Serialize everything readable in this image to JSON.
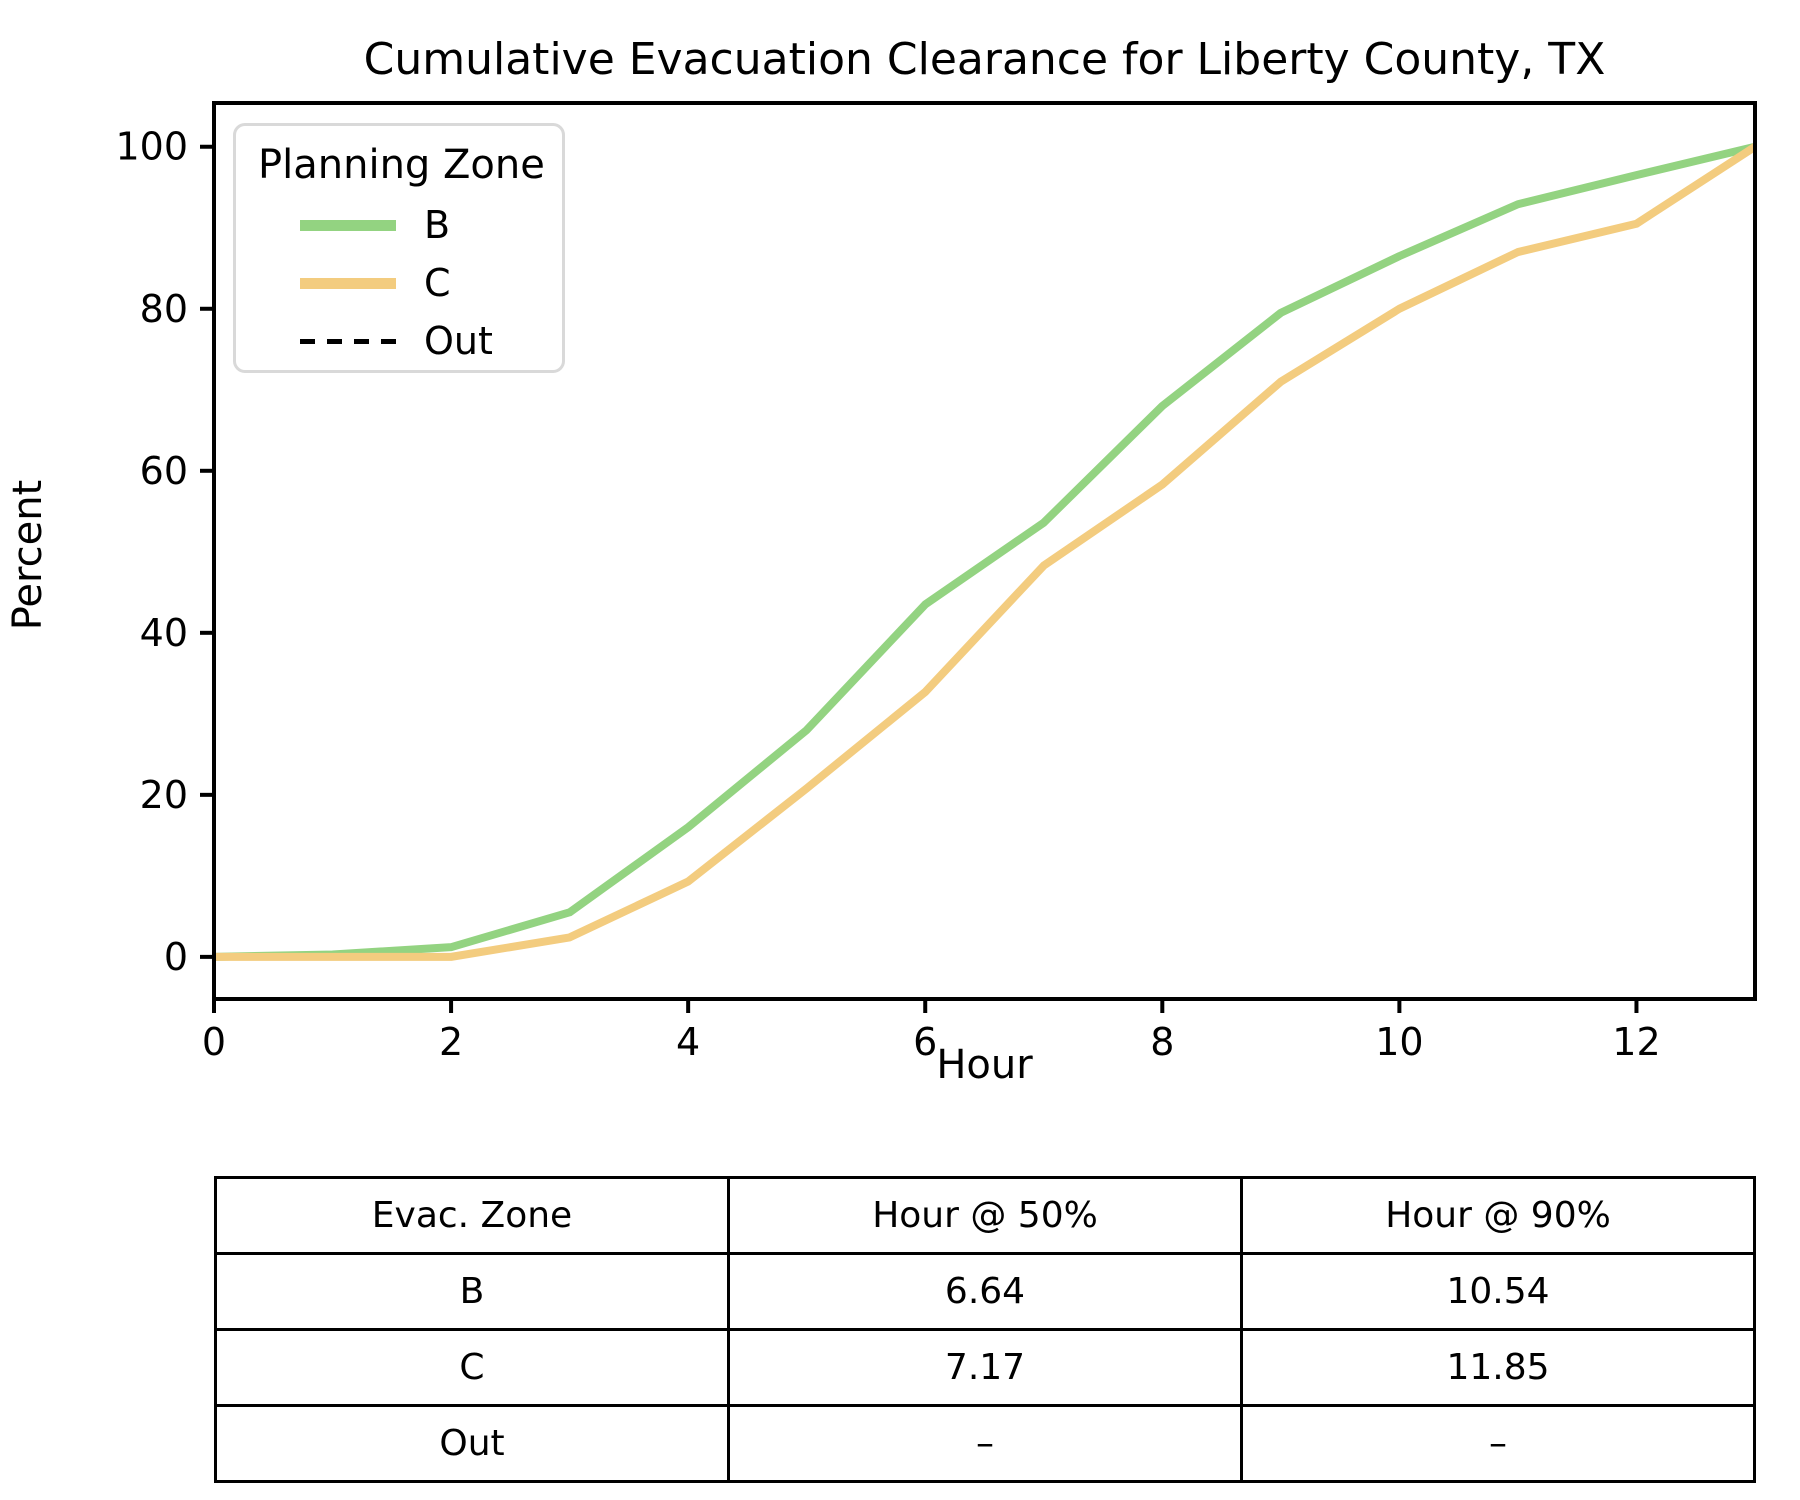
{
  "page": {
    "title": "Cumulative Evacuation Clearance for Liberty County, TX"
  },
  "chart_data": {
    "type": "line",
    "title": "Cumulative Evacuation Clearance for Liberty County, TX",
    "xlabel": "Hour",
    "ylabel": "Percent",
    "xlim": [
      0,
      13
    ],
    "ylim": [
      -5.2,
      105.4
    ],
    "xticks": [
      0,
      2,
      4,
      6,
      8,
      10,
      12
    ],
    "yticks": [
      0,
      20,
      40,
      60,
      80,
      100
    ],
    "grid": false,
    "legend": {
      "title": "Planning Zone",
      "position": "upper-left"
    },
    "x": [
      0,
      1,
      2,
      3,
      4,
      5,
      6,
      7,
      8,
      9,
      10,
      11,
      12,
      13
    ],
    "series": [
      {
        "name": "B",
        "color": "#93d381",
        "style": "solid",
        "values": [
          0,
          0.3,
          1.2,
          5.5,
          16.0,
          28.0,
          43.5,
          53.6,
          68.0,
          79.5,
          86.5,
          92.9,
          96.5,
          100
        ]
      },
      {
        "name": "C",
        "color": "#f3cc7f",
        "style": "solid",
        "values": [
          0,
          0,
          0,
          2.4,
          9.3,
          20.8,
          32.7,
          48.3,
          58.3,
          71.0,
          80.0,
          87.0,
          90.5,
          100
        ]
      },
      {
        "name": "Out",
        "color": "#000000",
        "style": "dashed",
        "values": null
      }
    ]
  },
  "summary_table": {
    "headers": [
      "Evac. Zone",
      "Hour @ 50%",
      "Hour @ 90%"
    ],
    "rows": [
      [
        "B",
        "6.64",
        "10.54"
      ],
      [
        "C",
        "7.17",
        "11.85"
      ],
      [
        "Out",
        "–",
        "–"
      ]
    ]
  }
}
